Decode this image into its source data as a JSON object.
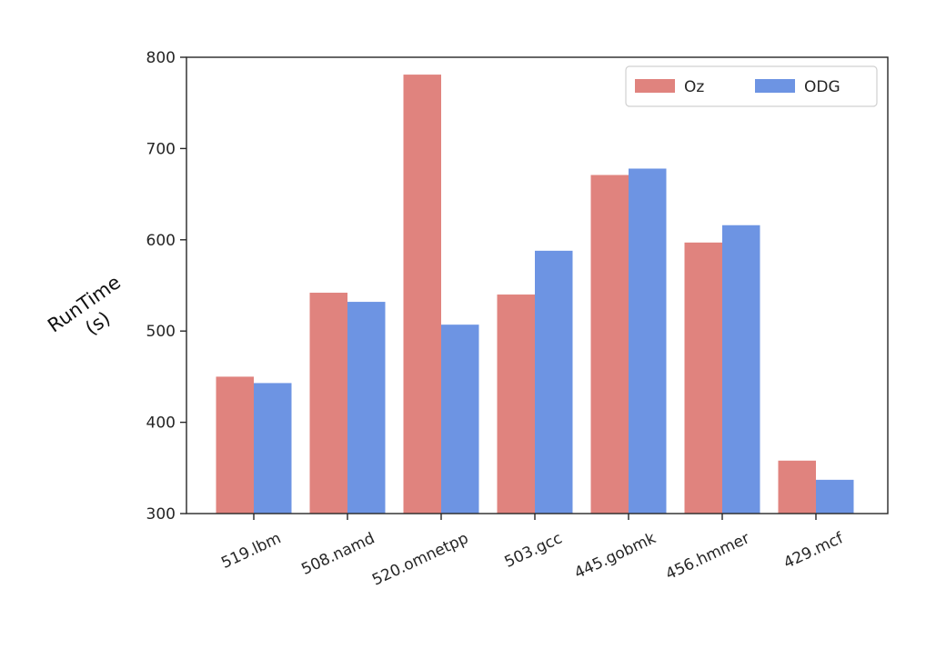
{
  "chart_data": {
    "type": "bar",
    "categories": [
      "519.lbm",
      "508.namd",
      "520.omnetpp",
      "503.gcc",
      "445.gobmk",
      "456.hmmer",
      "429.mcf"
    ],
    "series": [
      {
        "name": "Oz",
        "color": "#e0837e",
        "values": [
          450,
          542,
          781,
          540,
          671,
          597,
          358
        ]
      },
      {
        "name": "ODG",
        "color": "#6d94e3",
        "values": [
          443,
          532,
          507,
          588,
          678,
          616,
          337
        ]
      }
    ],
    "ylabel": [
      "RunTime",
      "(s)"
    ],
    "ylim": [
      300,
      800
    ],
    "yticks": [
      300,
      400,
      500,
      600,
      700,
      800
    ],
    "legend_position": "top-right",
    "grid": false
  }
}
